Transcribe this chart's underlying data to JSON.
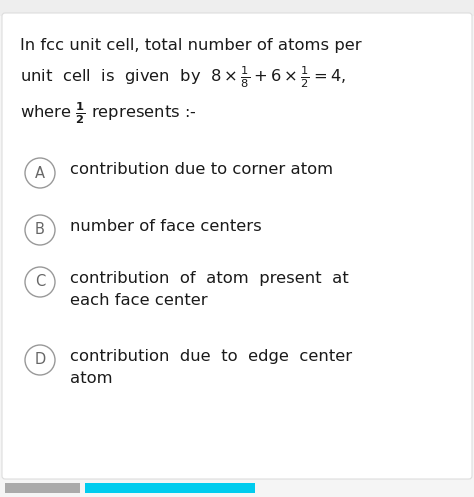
{
  "bg_color": "#f5f5f5",
  "card_color": "#ffffff",
  "border_color": "#dddddd",
  "top_strip_color": "#eeeeee",
  "bottom_bar1_color": "#aaaaaa",
  "bottom_bar2_color": "#00ccee",
  "question_line1": "In fcc unit cell, total number of atoms per",
  "question_line2": "unit  cell  is  given  by  $8 \\times \\frac{1}{8}+6 \\times \\frac{1}{2} = 4,$",
  "question_line3": "where $\\frac{\\mathbf{1}}{\\mathbf{2}}$ represents :-",
  "options": [
    {
      "label": "A",
      "line1": "contribution due to corner atom",
      "line2": null
    },
    {
      "label": "B",
      "line1": "number of face centers",
      "line2": null
    },
    {
      "label": "C",
      "line1": "contribution  of  atom  present  at",
      "line2": "each face center"
    },
    {
      "label": "D",
      "line1": "contribution  due  to  edge  center",
      "line2": "atom"
    }
  ],
  "circle_face": "#ffffff",
  "circle_edge": "#999999",
  "text_color": "#1a1a1a",
  "label_color": "#666666",
  "font_size": 11.8,
  "label_font_size": 10.5,
  "fig_width": 4.74,
  "fig_height": 4.97,
  "dpi": 100
}
